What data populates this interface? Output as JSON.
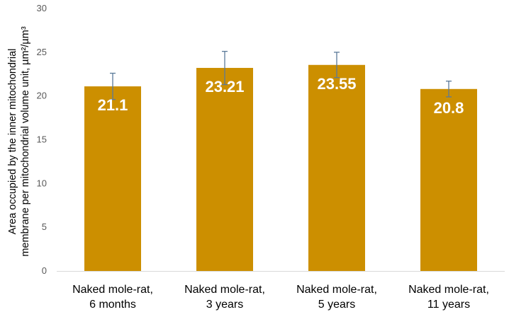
{
  "chart_data": {
    "type": "bar",
    "categories": [
      [
        "Naked mole-rat,",
        "6 months"
      ],
      [
        "Naked mole-rat,",
        "3 years"
      ],
      [
        "Naked mole-rat,",
        "5 years"
      ],
      [
        "Naked mole-rat,",
        "11 years"
      ]
    ],
    "values": [
      21.1,
      23.21,
      23.55,
      20.8
    ],
    "data_labels": [
      "21.1",
      "23.21",
      "23.55",
      "20.8"
    ],
    "error_bars": [
      {
        "low": 19.6,
        "high": 22.6
      },
      {
        "low": 21.3,
        "high": 25.1
      },
      {
        "low": 22.1,
        "high": 25.0
      },
      {
        "low": 19.9,
        "high": 21.7
      }
    ],
    "ylabel_lines": [
      "Area occupied by the inner mitochondrial",
      "membrane per mitochondrial volume unit, µm²/µm³"
    ],
    "xlabel": "",
    "ylim": [
      0,
      30
    ],
    "yticks": [
      0,
      5,
      10,
      15,
      20,
      25,
      30
    ],
    "grid": false,
    "legend": "none",
    "colors": {
      "bar": "#CC8F00",
      "error_bar": "#5B7A99",
      "axis": "#D9D9D9",
      "data_label": "#FFFFFF"
    }
  }
}
